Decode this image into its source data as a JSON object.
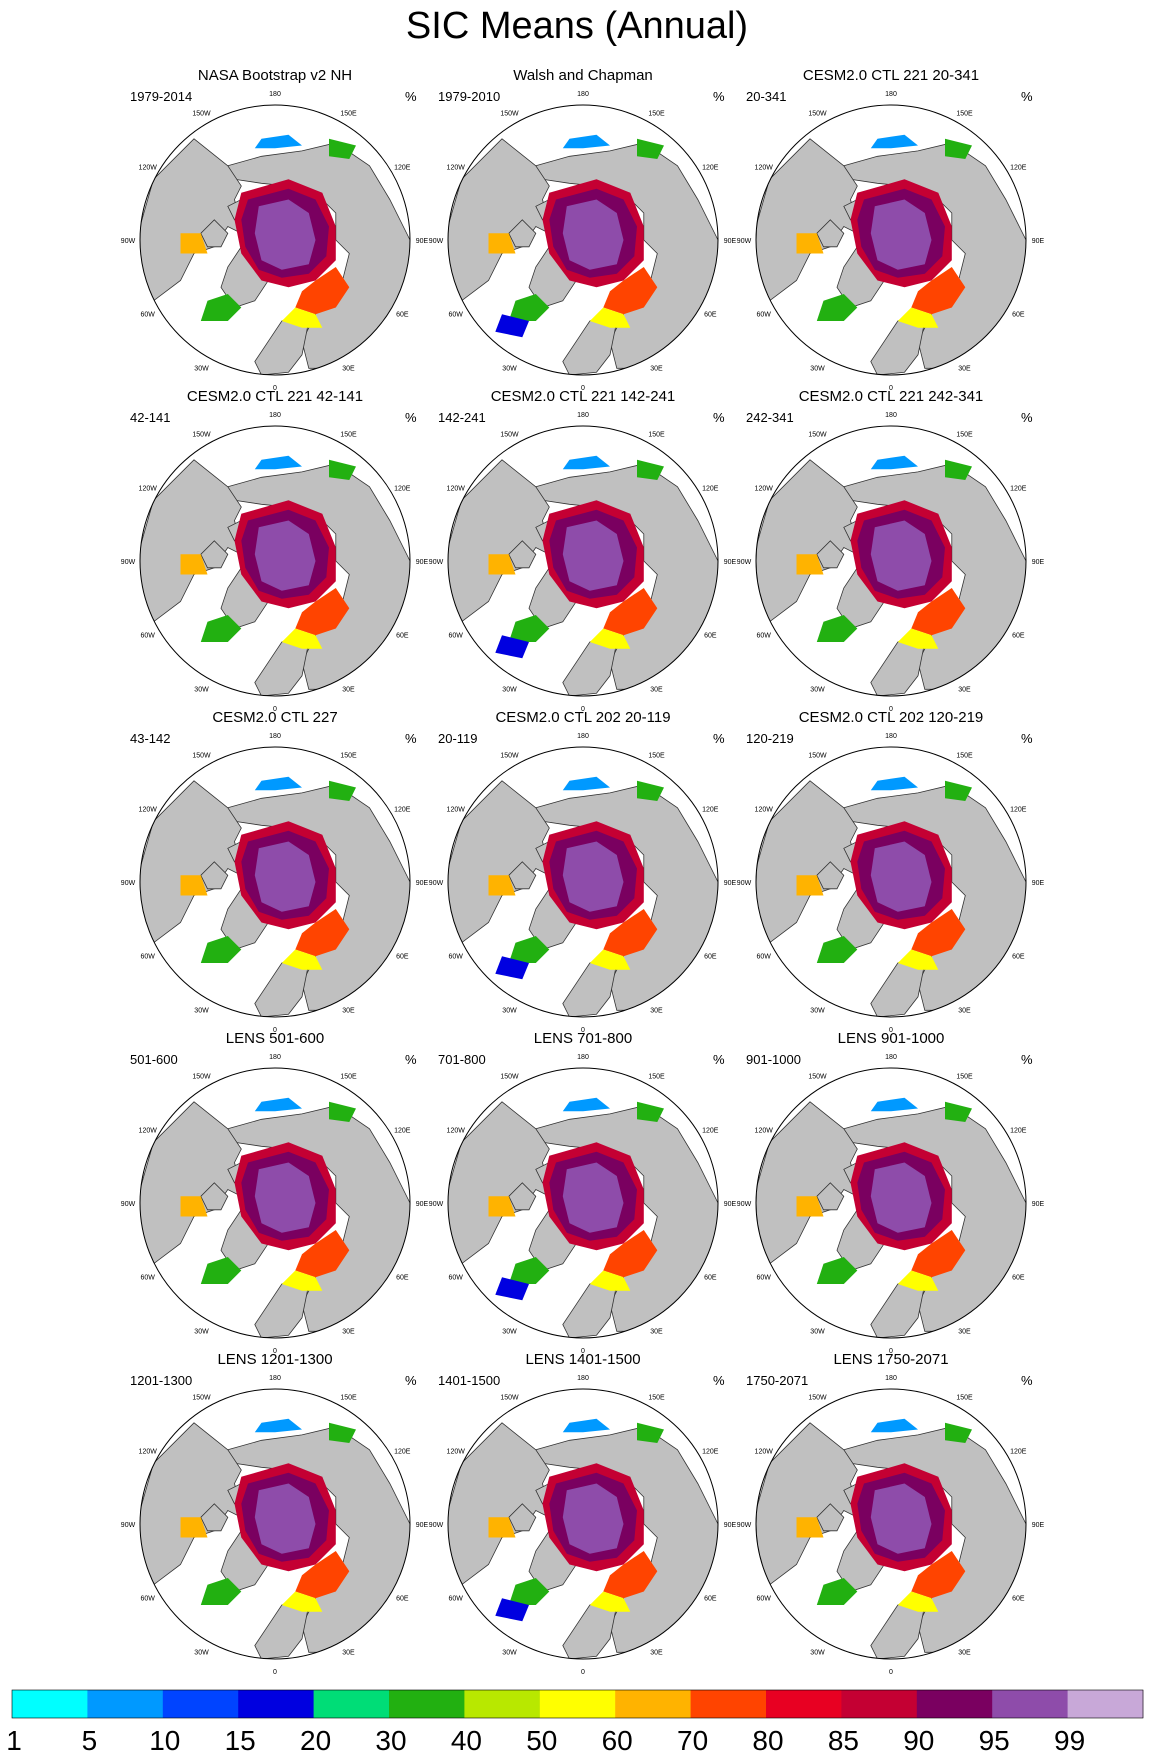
{
  "figure": {
    "title": "SIC Means (Annual)",
    "units": "%"
  },
  "chart_data": {
    "type": "polar-contour-panels",
    "title": "SIC Means (Annual)",
    "units": "%",
    "grid": {
      "rows": 5,
      "cols": 3
    },
    "longitude_labels": [
      "180",
      "150E",
      "120E",
      "90E",
      "60E",
      "30E",
      "0",
      "30W",
      "60W",
      "90W",
      "120W",
      "150W"
    ],
    "panels": [
      {
        "title": "NASA Bootstrap v2 NH",
        "period": "1979-2014",
        "units": "%"
      },
      {
        "title": "Walsh and Chapman",
        "period": "1979-2010",
        "units": "%"
      },
      {
        "title": "CESM2.0 CTL 221 20-341",
        "period": "20-341",
        "units": "%"
      },
      {
        "title": "CESM2.0 CTL 221 42-141",
        "period": "42-141",
        "units": "%"
      },
      {
        "title": "CESM2.0 CTL 221 142-241",
        "period": "142-241",
        "units": "%"
      },
      {
        "title": "CESM2.0 CTL 221 242-341",
        "period": "242-341",
        "units": "%"
      },
      {
        "title": "CESM2.0 CTL 227",
        "period": "43-142",
        "units": "%"
      },
      {
        "title": "CESM2.0 CTL 202 20-119",
        "period": "20-119",
        "units": "%"
      },
      {
        "title": "CESM2.0 CTL 202 120-219",
        "period": "120-219",
        "units": "%"
      },
      {
        "title": "LENS 501-600",
        "period": "501-600",
        "units": "%"
      },
      {
        "title": "LENS 701-800",
        "period": "701-800",
        "units": "%"
      },
      {
        "title": "LENS 901-1000",
        "period": "901-1000",
        "units": "%"
      },
      {
        "title": "LENS 1201-1300",
        "period": "1201-1300",
        "units": "%"
      },
      {
        "title": "LENS 1401-1500",
        "period": "1401-1500",
        "units": "%"
      },
      {
        "title": "LENS 1750-2071",
        "period": "1750-2071",
        "units": "%"
      }
    ],
    "colorbar": {
      "labels": [
        "1",
        "5",
        "10",
        "15",
        "20",
        "30",
        "40",
        "50",
        "60",
        "70",
        "80",
        "85",
        "90",
        "95",
        "99"
      ],
      "colors": [
        "#00ffff",
        "#0099ff",
        "#0044ff",
        "#0000e0",
        "#00dd77",
        "#22b011",
        "#b8e800",
        "#ffff00",
        "#ffb300",
        "#ff4400",
        "#e80022",
        "#c40033",
        "#7a0060",
        "#8e4caa",
        "#c8a8d8"
      ]
    }
  },
  "style": {
    "land": "#c0c0c0",
    "ocean": "#ffffff",
    "coast": "#333333"
  }
}
